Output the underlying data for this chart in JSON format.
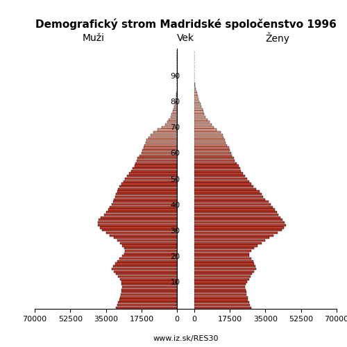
{
  "title": "Demografický strom Madridské spoločenstvo 1996",
  "left_label": "Muži",
  "right_label": "Ženy",
  "center_label": "Vek",
  "footer": "www.iz.sk/RES30",
  "age_groups": [
    0,
    1,
    2,
    3,
    4,
    5,
    6,
    7,
    8,
    9,
    10,
    11,
    12,
    13,
    14,
    15,
    16,
    17,
    18,
    19,
    20,
    21,
    22,
    23,
    24,
    25,
    26,
    27,
    28,
    29,
    30,
    31,
    32,
    33,
    34,
    35,
    36,
    37,
    38,
    39,
    40,
    41,
    42,
    43,
    44,
    45,
    46,
    47,
    48,
    49,
    50,
    51,
    52,
    53,
    54,
    55,
    56,
    57,
    58,
    59,
    60,
    61,
    62,
    63,
    64,
    65,
    66,
    67,
    68,
    69,
    70,
    71,
    72,
    73,
    74,
    75,
    76,
    77,
    78,
    79,
    80,
    81,
    82,
    83,
    84,
    85,
    86,
    87,
    88,
    89,
    90,
    91,
    92,
    93,
    94,
    95,
    96,
    97,
    98,
    99
  ],
  "males": [
    30000,
    29500,
    29000,
    28500,
    28200,
    27800,
    27500,
    27200,
    27000,
    27200,
    27500,
    28000,
    29000,
    30000,
    31000,
    32000,
    31500,
    30500,
    29500,
    28500,
    27000,
    26000,
    25500,
    26000,
    27000,
    28000,
    29500,
    31000,
    33000,
    35000,
    37000,
    38000,
    39000,
    39000,
    38500,
    37500,
    36000,
    35000,
    34000,
    33000,
    32000,
    31500,
    31000,
    30500,
    30000,
    29500,
    29000,
    28500,
    27500,
    26500,
    25500,
    24500,
    23500,
    22500,
    22000,
    21000,
    20500,
    20000,
    19500,
    18500,
    17500,
    17000,
    16500,
    16000,
    15500,
    15000,
    14000,
    13000,
    11500,
    9500,
    7500,
    6000,
    5000,
    4000,
    3200,
    2700,
    2200,
    1800,
    1400,
    1100,
    800,
    600,
    420,
    280,
    190,
    120,
    80,
    50,
    25,
    12,
    5,
    3,
    1,
    0,
    0,
    0,
    0,
    0,
    0,
    0
  ],
  "females": [
    28000,
    27500,
    27000,
    26500,
    26200,
    25800,
    25500,
    25200,
    25000,
    25300,
    26000,
    27000,
    27800,
    28500,
    29500,
    30500,
    30000,
    29500,
    29000,
    28000,
    27000,
    27000,
    28000,
    29500,
    31000,
    33000,
    35000,
    37000,
    39000,
    41000,
    43000,
    44000,
    45000,
    44500,
    43500,
    42500,
    41500,
    40500,
    39500,
    38500,
    37500,
    36500,
    35000,
    34000,
    33000,
    32000,
    30500,
    29000,
    28000,
    27000,
    26000,
    25000,
    24000,
    23000,
    22500,
    22000,
    21000,
    20000,
    19500,
    18500,
    18000,
    17500,
    17000,
    16000,
    15500,
    15000,
    14500,
    14000,
    13000,
    11000,
    9500,
    8500,
    7500,
    6500,
    5500,
    5000,
    4500,
    4000,
    3500,
    3000,
    2500,
    2100,
    1700,
    1300,
    950,
    650,
    450,
    280,
    170,
    90,
    45,
    20,
    10,
    5,
    2,
    0,
    0,
    0,
    0,
    0
  ],
  "xlim": 70000,
  "bar_color_young": "#c0392b",
  "bar_color_old": "#e8a090",
  "bar_edge_color": "#000000",
  "bar_linewidth": 0.3,
  "background_color": "#ffffff",
  "title_fontsize": 11,
  "label_fontsize": 10,
  "tick_fontsize": 8,
  "footer_fontsize": 8,
  "age_ticks": [
    10,
    20,
    30,
    40,
    50,
    60,
    70,
    80,
    90
  ],
  "x_ticks": [
    0,
    17500,
    35000,
    52500,
    70000
  ],
  "x_ticklabels_left": [
    "0",
    "17500",
    "35000",
    "52500",
    "70000"
  ],
  "x_ticklabels_right": [
    "0",
    "17500",
    "35000",
    "52500",
    "70000"
  ]
}
